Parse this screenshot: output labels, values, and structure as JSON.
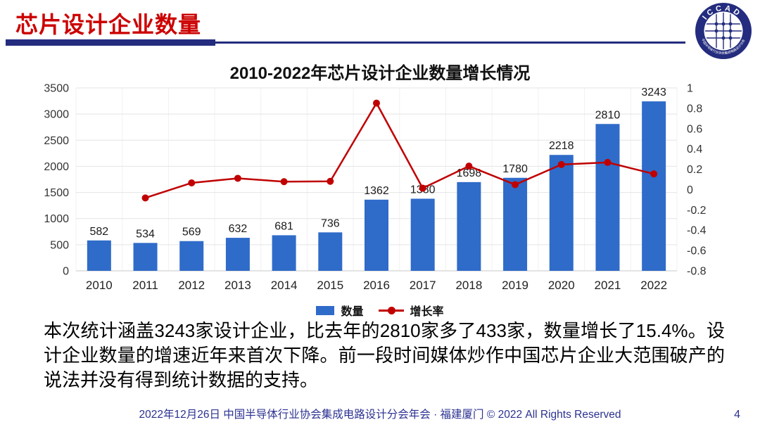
{
  "header": {
    "title": "芯片设计企业数量"
  },
  "logo": {
    "top_text": "ICCAD",
    "bottom_text": "中国半导体行业协会集成电路设计分会"
  },
  "chart": {
    "title": "2010-2022年芯片设计企业数量增长情况"
  },
  "chart_data": {
    "type": "bar",
    "title": "2010-2022年芯片设计企业数量增长情况",
    "categories": [
      "2010",
      "2011",
      "2012",
      "2013",
      "2014",
      "2015",
      "2016",
      "2017",
      "2018",
      "2019",
      "2020",
      "2021",
      "2022"
    ],
    "series": [
      {
        "name": "数量",
        "type": "bar",
        "axis": "left",
        "color": "#2F6BC9",
        "values": [
          582,
          534,
          569,
          632,
          681,
          736,
          1362,
          1380,
          1698,
          1780,
          2218,
          2810,
          3243
        ]
      },
      {
        "name": "增长率",
        "type": "line",
        "axis": "right",
        "color": "#C00000",
        "values": [
          null,
          -0.0825,
          0.0655,
          0.1107,
          0.0775,
          0.0808,
          0.8505,
          0.0132,
          0.2304,
          0.0483,
          0.2461,
          0.2669,
          0.1541
        ]
      }
    ],
    "left_axis": {
      "min": 0,
      "max": 3500,
      "step": 500,
      "ticks": [
        "3500",
        "3000",
        "2500",
        "2000",
        "1500",
        "1000",
        "500",
        "0"
      ]
    },
    "right_axis": {
      "min": -0.8,
      "max": 1,
      "step": 0.2,
      "ticks": [
        "1",
        "0.8",
        "0.6",
        "0.4",
        "0.2",
        "0",
        "-0.2",
        "-0.4",
        "-0.6",
        "-0.8"
      ]
    },
    "legend": [
      "数量",
      "增长率"
    ],
    "legend_position": "bottom",
    "grid": true
  },
  "body": {
    "paragraph": "本次统计涵盖3243家设计企业，比去年的2810家多了433家，数量增长了15.4%。设计企业数量的增速近年来首次下降。前一段时间媒体炒作中国芯片企业大范围破产的说法并没有得到统计数据的支持。"
  },
  "footer": {
    "text": "2022年12月26日 中国半导体行业协会集成电路设计分会年会 · 福建厦门 © 2022 All Rights Reserved",
    "page": "4"
  }
}
